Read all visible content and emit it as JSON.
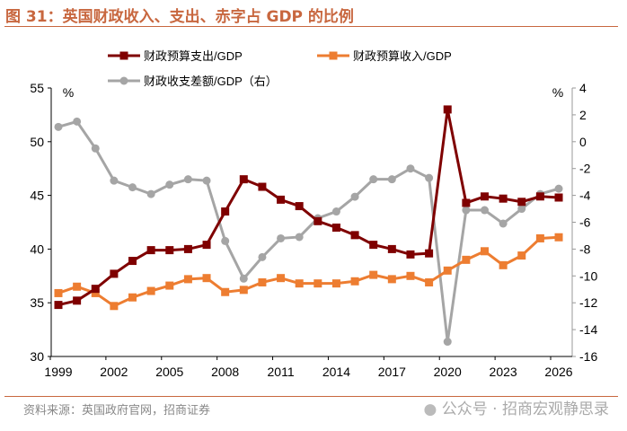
{
  "title": "图 31：英国财政收入、支出、赤字占 GDP 的比例",
  "source": "资料来源：英国政府官网，招商证券",
  "watermark": "公众号 · 招商宏观静思录",
  "colors": {
    "spending": "#7f0000",
    "revenue": "#ed7d31",
    "balance": "#a5a5a5",
    "accent": "#c8673f"
  },
  "chart_data": {
    "type": "line",
    "x": [
      1999,
      2000,
      2001,
      2002,
      2003,
      2004,
      2005,
      2006,
      2007,
      2008,
      2009,
      2010,
      2011,
      2012,
      2013,
      2014,
      2015,
      2016,
      2017,
      2018,
      2019,
      2020,
      2021,
      2022,
      2023,
      2024,
      2025,
      2026
    ],
    "x_ticks": [
      "1999",
      "2002",
      "2005",
      "2008",
      "2011",
      "2014",
      "2017",
      "2020",
      "2023",
      "2026"
    ],
    "y_left": {
      "unit": "%",
      "range": [
        30,
        55
      ],
      "ticks": [
        "30",
        "35",
        "40",
        "45",
        "50",
        "55"
      ]
    },
    "y_right": {
      "unit": "%",
      "range": [
        -16,
        4
      ],
      "ticks": [
        "-16",
        "-14",
        "-12",
        "-10",
        "-8",
        "-6",
        "-4",
        "-2",
        "0",
        "2",
        "4"
      ]
    },
    "legend_placement": "top",
    "grid": false,
    "series": [
      {
        "name": "财政预算支出/GDP",
        "axis": "left",
        "marker": "square",
        "values": [
          34.8,
          35.2,
          36.3,
          37.7,
          38.9,
          39.9,
          39.9,
          40.0,
          40.4,
          43.5,
          46.5,
          45.8,
          44.6,
          44.0,
          42.6,
          42.0,
          41.3,
          40.4,
          40.0,
          39.5,
          39.6,
          53.0,
          44.3,
          44.9,
          44.7,
          44.4,
          44.9,
          44.8
        ]
      },
      {
        "name": "财政预算收入/GDP",
        "axis": "left",
        "marker": "square",
        "values": [
          35.9,
          36.5,
          35.9,
          34.7,
          35.5,
          36.1,
          36.6,
          37.2,
          37.3,
          36.0,
          36.2,
          36.9,
          37.3,
          36.8,
          36.8,
          36.8,
          37.0,
          37.6,
          37.2,
          37.5,
          36.9,
          38.0,
          39.0,
          39.8,
          38.5,
          39.4,
          41.0,
          41.1
        ]
      },
      {
        "name": "财政收支差额/GDP（右）",
        "axis": "right",
        "marker": "circle",
        "values": [
          1.1,
          1.5,
          -0.5,
          -2.9,
          -3.4,
          -3.9,
          -3.2,
          -2.8,
          -2.9,
          -7.4,
          -10.2,
          -8.6,
          -7.2,
          -7.1,
          -5.7,
          -5.2,
          -4.1,
          -2.8,
          -2.8,
          -2.0,
          -2.7,
          -14.9,
          -5.1,
          -5.1,
          -6.1,
          -5.0,
          -3.9,
          -3.5
        ]
      }
    ]
  }
}
